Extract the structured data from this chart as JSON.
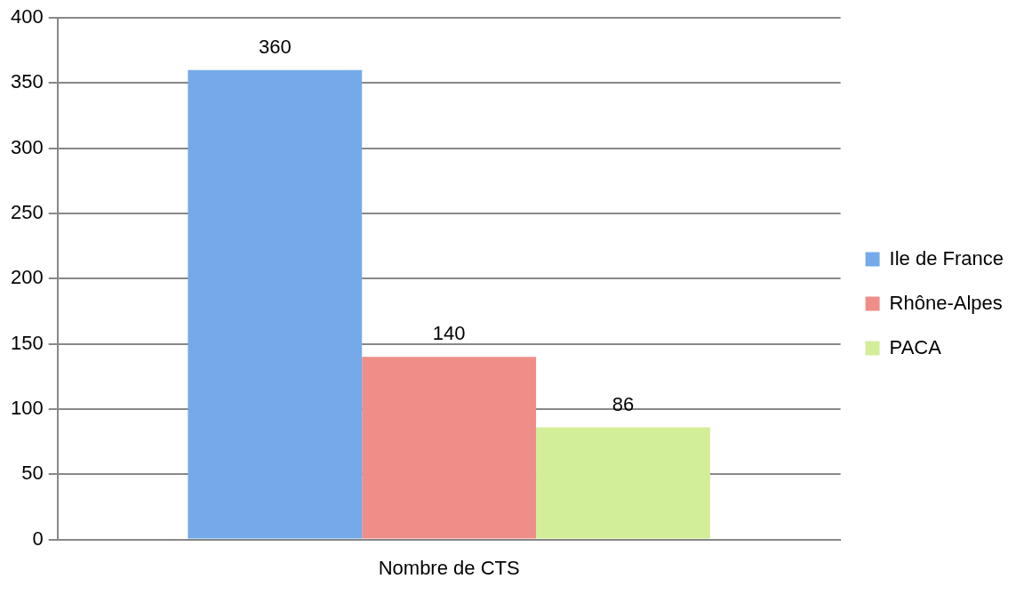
{
  "chart_data": {
    "type": "bar",
    "categories": [
      "Nombre de CTS"
    ],
    "series": [
      {
        "name": "Ile de France",
        "color": "#75aaea",
        "values": [
          360
        ]
      },
      {
        "name": "Rhône-Alpes",
        "color": "#ef8e89",
        "values": [
          140
        ]
      },
      {
        "name": "PACA",
        "color": "#d3ee98",
        "values": [
          86
        ]
      }
    ],
    "ylim": [
      0,
      400
    ],
    "yticks": [
      0,
      50,
      100,
      150,
      200,
      250,
      300,
      350,
      400
    ],
    "grid": "y",
    "legend": "right",
    "data_labels": true
  }
}
